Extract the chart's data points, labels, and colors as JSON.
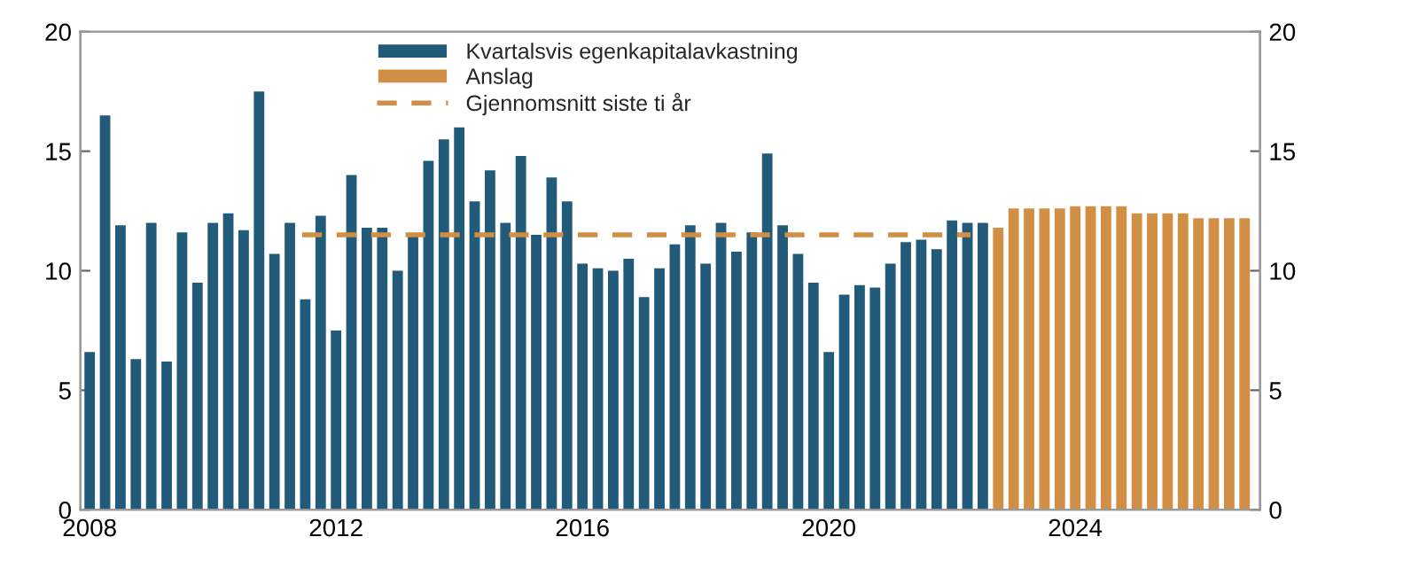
{
  "chart_data": {
    "type": "bar",
    "series": [
      {
        "name": "Kvartalsvis egenkapitalavkastning",
        "color": "#225a7a",
        "x": [
          2008,
          2008.25,
          2008.5,
          2008.75,
          2009,
          2009.25,
          2009.5,
          2009.75,
          2010,
          2010.25,
          2010.5,
          2010.75,
          2011,
          2011.25,
          2011.5,
          2011.75,
          2012,
          2012.25,
          2012.5,
          2012.75,
          2013,
          2013.25,
          2013.5,
          2013.75,
          2014,
          2014.25,
          2014.5,
          2014.75,
          2015,
          2015.25,
          2015.5,
          2015.75,
          2016,
          2016.25,
          2016.5,
          2016.75,
          2017,
          2017.25,
          2017.5,
          2017.75,
          2018,
          2018.25,
          2018.5,
          2018.75,
          2019,
          2019.25,
          2019.5,
          2019.75,
          2020,
          2020.25,
          2020.5,
          2020.75,
          2021,
          2021.25,
          2021.5,
          2021.75,
          2022,
          2022.25,
          2022.5
        ],
        "values": [
          6.6,
          16.5,
          11.9,
          6.3,
          12.0,
          6.2,
          11.6,
          9.5,
          12.0,
          12.4,
          11.7,
          17.5,
          10.7,
          12.0,
          8.8,
          12.3,
          7.5,
          14.0,
          11.8,
          11.8,
          10.0,
          11.5,
          14.6,
          15.5,
          16.0,
          12.9,
          14.2,
          12.0,
          14.8,
          11.5,
          13.9,
          12.9,
          10.3,
          10.1,
          10.0,
          10.5,
          8.9,
          10.1,
          11.1,
          11.9,
          10.3,
          12.0,
          10.8,
          11.6,
          14.9,
          11.9,
          10.7,
          9.5,
          6.6,
          9.0,
          9.4,
          9.3,
          10.3,
          11.2,
          11.3,
          10.9,
          12.1,
          12.0,
          12.0
        ]
      },
      {
        "name": "Anslag",
        "color": "#d08f44",
        "x": [
          2022.75,
          2023,
          2023.25,
          2023.5,
          2023.75,
          2024,
          2024.25,
          2024.5,
          2024.75,
          2025,
          2025.25,
          2025.5,
          2025.75,
          2026,
          2026.25,
          2026.5,
          2026.75
        ],
        "values": [
          11.8,
          12.6,
          12.6,
          12.6,
          12.6,
          12.7,
          12.7,
          12.7,
          12.7,
          12.4,
          12.4,
          12.4,
          12.4,
          12.2,
          12.2,
          12.2,
          12.2
        ]
      },
      {
        "name": "Gjennomsnitt siste ti år",
        "type": "line",
        "color": "#d08f44",
        "line_style": "dashed",
        "x": [
          2011.45,
          2022.3
        ],
        "values": [
          11.5,
          11.5
        ]
      }
    ],
    "xlim": [
      2007.85,
      2027.0
    ],
    "xticks": [
      2008,
      2012,
      2016,
      2020,
      2024
    ],
    "ylim": [
      0,
      20
    ],
    "yticks": [
      0,
      5,
      10,
      15,
      20
    ],
    "y2lim": [
      0,
      20
    ],
    "y2ticks": [
      0,
      5,
      10,
      15,
      20
    ],
    "grid": false,
    "legend": "top"
  }
}
